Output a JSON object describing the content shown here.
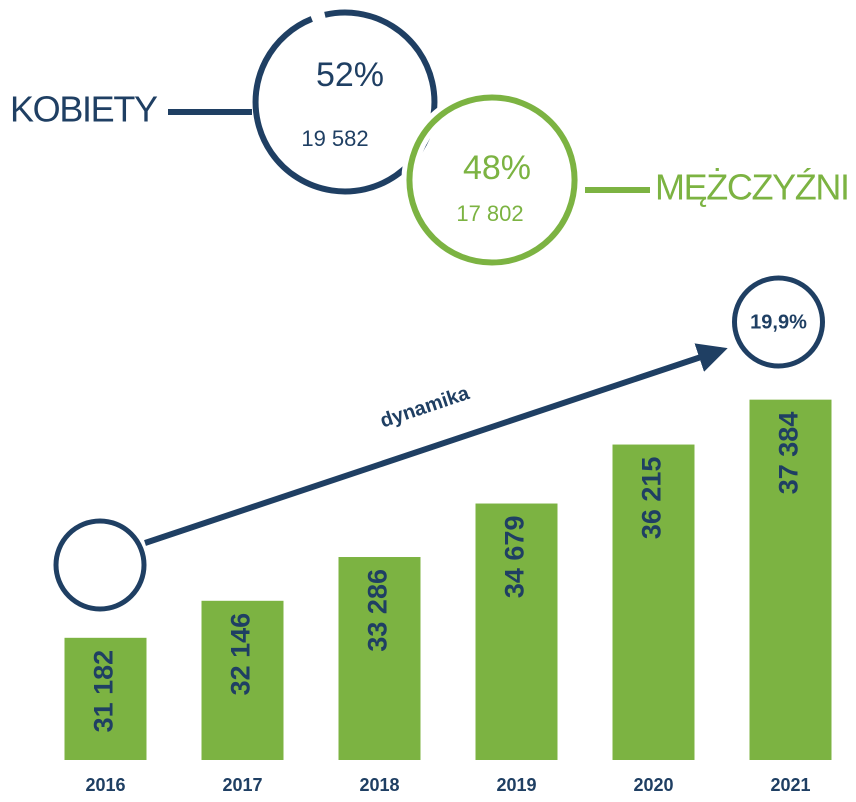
{
  "chart_data": [
    {
      "type": "proportion",
      "categories": [
        "KOBIETY",
        "MĘŻCZYŹNI"
      ],
      "values": [
        52,
        48
      ],
      "value_labels": [
        "52%",
        "48%"
      ],
      "counts": [
        19582,
        17802
      ],
      "count_labels": [
        "19 582",
        "17 802"
      ],
      "colors": [
        "#1f3f63",
        "#7cb342"
      ]
    },
    {
      "type": "bar",
      "categories": [
        "2016",
        "2017",
        "2018",
        "2019",
        "2020",
        "2021"
      ],
      "values": [
        31182,
        32146,
        33286,
        34679,
        36215,
        37384
      ],
      "value_labels": [
        "31 182",
        "32 146",
        "33 286",
        "34 679",
        "36 215",
        "37 384"
      ],
      "color": "#7cb342",
      "ylim": [
        28000,
        38000
      ],
      "annotation": {
        "text": "dynamika",
        "value": 19.9,
        "value_label": "19,9%"
      }
    }
  ]
}
